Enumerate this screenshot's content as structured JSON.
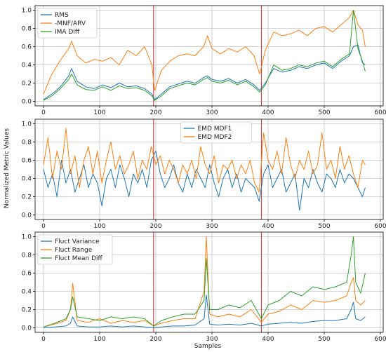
{
  "figure": {
    "ylabel": "Normalized Metric Values",
    "xlabel": "Samples"
  },
  "colors": {
    "blue": "#1f77b4",
    "orange": "#ff7f0e",
    "green": "#2ca02c",
    "vline": "#d62728",
    "grid": "#b0b0b0"
  },
  "chart_data": [
    {
      "type": "line",
      "xlim": [
        -15,
        605
      ],
      "ylim": [
        -0.05,
        1.05
      ],
      "xticks": [
        0,
        100,
        200,
        300,
        400,
        500,
        600
      ],
      "yticks": [
        0.0,
        0.2,
        0.4,
        0.6,
        0.8,
        1.0
      ],
      "vlines": [
        196,
        388
      ],
      "legend": "top-left",
      "series": [
        {
          "name": "RMS",
          "color": "blue",
          "x": [
            0,
            15,
            30,
            45,
            50,
            60,
            75,
            90,
            105,
            120,
            135,
            150,
            165,
            180,
            193,
            198,
            210,
            225,
            240,
            255,
            270,
            285,
            292,
            300,
            315,
            330,
            345,
            360,
            375,
            385,
            395,
            410,
            425,
            440,
            455,
            470,
            485,
            500,
            515,
            530,
            545,
            552,
            560,
            568,
            573
          ],
          "y": [
            0.02,
            0.08,
            0.16,
            0.28,
            0.36,
            0.22,
            0.16,
            0.14,
            0.18,
            0.15,
            0.2,
            0.16,
            0.17,
            0.14,
            0.08,
            0.02,
            0.08,
            0.16,
            0.19,
            0.22,
            0.2,
            0.26,
            0.28,
            0.24,
            0.22,
            0.25,
            0.2,
            0.24,
            0.18,
            0.12,
            0.2,
            0.36,
            0.32,
            0.34,
            0.38,
            0.36,
            0.4,
            0.42,
            0.36,
            0.44,
            0.5,
            0.6,
            0.62,
            0.42,
            0.4
          ]
        },
        {
          "name": "-MNF/ARV",
          "color": "orange",
          "x": [
            0,
            15,
            30,
            45,
            50,
            60,
            75,
            90,
            105,
            120,
            135,
            150,
            165,
            180,
            193,
            198,
            210,
            225,
            240,
            255,
            270,
            285,
            292,
            300,
            315,
            330,
            345,
            360,
            375,
            385,
            395,
            410,
            425,
            440,
            455,
            470,
            485,
            500,
            515,
            530,
            545,
            552,
            560,
            568,
            573
          ],
          "y": [
            0.08,
            0.3,
            0.45,
            0.58,
            0.66,
            0.5,
            0.42,
            0.46,
            0.44,
            0.48,
            0.4,
            0.56,
            0.5,
            0.6,
            0.4,
            0.12,
            0.34,
            0.44,
            0.5,
            0.52,
            0.5,
            0.6,
            0.72,
            0.58,
            0.52,
            0.58,
            0.54,
            0.6,
            0.5,
            0.3,
            0.56,
            0.76,
            0.72,
            0.74,
            0.78,
            0.72,
            0.8,
            0.82,
            0.76,
            0.84,
            0.92,
            1.0,
            0.84,
            0.78,
            0.6
          ]
        },
        {
          "name": "IMA Diff",
          "color": "green",
          "x": [
            0,
            15,
            30,
            45,
            50,
            60,
            75,
            90,
            105,
            120,
            135,
            150,
            165,
            180,
            193,
            198,
            210,
            225,
            240,
            255,
            270,
            285,
            292,
            300,
            315,
            330,
            345,
            360,
            375,
            385,
            395,
            410,
            425,
            440,
            455,
            470,
            485,
            500,
            515,
            530,
            545,
            552,
            560,
            568,
            573
          ],
          "y": [
            0.01,
            0.06,
            0.14,
            0.24,
            0.3,
            0.18,
            0.13,
            0.12,
            0.16,
            0.12,
            0.17,
            0.14,
            0.15,
            0.12,
            0.06,
            0.01,
            0.06,
            0.14,
            0.17,
            0.2,
            0.18,
            0.24,
            0.26,
            0.22,
            0.2,
            0.23,
            0.18,
            0.22,
            0.16,
            0.1,
            0.18,
            0.4,
            0.34,
            0.36,
            0.4,
            0.38,
            0.42,
            0.44,
            0.38,
            0.46,
            0.52,
            1.0,
            0.58,
            0.44,
            0.33
          ]
        }
      ]
    },
    {
      "type": "line",
      "xlim": [
        -15,
        605
      ],
      "ylim": [
        -0.05,
        1.05
      ],
      "xticks": [
        0,
        100,
        200,
        300,
        400,
        500,
        600
      ],
      "yticks": [
        0.0,
        0.2,
        0.4,
        0.6,
        0.8,
        1.0
      ],
      "vlines": [
        196,
        388
      ],
      "legend": "top-center",
      "series": [
        {
          "name": "EMD MDF1",
          "color": "blue",
          "x": [
            0,
            8,
            16,
            24,
            32,
            40,
            48,
            56,
            64,
            72,
            80,
            88,
            96,
            104,
            112,
            120,
            128,
            136,
            144,
            152,
            160,
            168,
            176,
            184,
            192,
            200,
            208,
            216,
            224,
            232,
            240,
            248,
            256,
            264,
            272,
            280,
            288,
            296,
            304,
            312,
            320,
            328,
            336,
            344,
            352,
            360,
            368,
            376,
            384,
            392,
            400,
            408,
            416,
            424,
            432,
            440,
            448,
            456,
            464,
            472,
            480,
            488,
            496,
            504,
            512,
            520,
            528,
            536,
            544,
            552,
            560,
            568,
            573
          ],
          "y": [
            0.5,
            0.3,
            0.45,
            0.2,
            0.6,
            0.35,
            0.5,
            0.25,
            0.4,
            0.55,
            0.3,
            0.45,
            0.35,
            0.1,
            0.4,
            0.5,
            0.3,
            0.55,
            0.4,
            0.2,
            0.45,
            0.35,
            0.5,
            0.3,
            0.6,
            0.7,
            0.45,
            0.3,
            0.4,
            0.55,
            0.35,
            0.25,
            0.45,
            0.3,
            0.5,
            0.4,
            0.3,
            0.55,
            0.35,
            0.2,
            0.4,
            0.5,
            0.3,
            0.45,
            0.25,
            0.4,
            0.35,
            0.3,
            0.15,
            0.45,
            0.55,
            0.3,
            0.4,
            0.5,
            0.25,
            0.35,
            0.45,
            0.05,
            0.4,
            0.3,
            0.5,
            0.35,
            0.25,
            0.45,
            0.4,
            0.3,
            0.5,
            0.35,
            0.45,
            0.4,
            0.3,
            0.2,
            0.3
          ]
        },
        {
          "name": "EMD MDF2",
          "color": "orange",
          "x": [
            0,
            8,
            16,
            24,
            32,
            40,
            48,
            56,
            64,
            72,
            80,
            88,
            96,
            104,
            112,
            120,
            128,
            136,
            144,
            152,
            160,
            168,
            176,
            184,
            192,
            200,
            208,
            216,
            224,
            232,
            240,
            248,
            256,
            264,
            272,
            280,
            288,
            296,
            304,
            312,
            320,
            328,
            336,
            344,
            352,
            360,
            368,
            376,
            384,
            392,
            400,
            408,
            416,
            424,
            432,
            440,
            448,
            456,
            464,
            472,
            480,
            488,
            496,
            504,
            512,
            520,
            528,
            536,
            544,
            552,
            560,
            568,
            573
          ],
          "y": [
            0.55,
            0.85,
            0.4,
            0.7,
            0.5,
            0.95,
            0.45,
            0.65,
            0.3,
            0.6,
            0.75,
            0.45,
            0.7,
            0.35,
            0.6,
            0.8,
            0.5,
            0.65,
            0.45,
            0.55,
            0.7,
            0.4,
            0.6,
            0.5,
            0.75,
            0.55,
            0.65,
            0.45,
            0.6,
            0.5,
            0.35,
            0.55,
            0.45,
            0.6,
            0.4,
            0.75,
            0.55,
            0.45,
            0.65,
            0.35,
            0.55,
            0.5,
            0.6,
            0.4,
            0.55,
            0.45,
            0.6,
            0.35,
            0.25,
            0.9,
            0.6,
            0.5,
            0.7,
            0.45,
            0.85,
            0.55,
            0.4,
            0.6,
            0.5,
            0.7,
            0.45,
            0.55,
            0.9,
            0.5,
            0.6,
            0.4,
            0.75,
            0.5,
            0.65,
            0.45,
            0.3,
            0.6,
            0.55
          ]
        }
      ]
    },
    {
      "type": "line",
      "xlim": [
        -15,
        605
      ],
      "ylim": [
        -0.05,
        1.05
      ],
      "xticks": [
        0,
        100,
        200,
        300,
        400,
        500,
        600
      ],
      "yticks": [
        0.0,
        0.2,
        0.4,
        0.6,
        0.8,
        1.0
      ],
      "vlines": [
        196,
        388
      ],
      "legend": "top-left",
      "series": [
        {
          "name": "Fluct Variance",
          "color": "blue",
          "x": [
            0,
            20,
            40,
            48,
            52,
            60,
            80,
            100,
            120,
            140,
            160,
            180,
            196,
            210,
            230,
            250,
            270,
            286,
            290,
            296,
            310,
            330,
            350,
            370,
            388,
            400,
            420,
            440,
            460,
            480,
            500,
            520,
            540,
            548,
            552,
            556,
            565,
            573
          ],
          "y": [
            0.0,
            0.01,
            0.02,
            0.05,
            0.12,
            0.02,
            0.01,
            0.01,
            0.02,
            0.01,
            0.02,
            0.01,
            0.0,
            0.01,
            0.02,
            0.02,
            0.03,
            0.1,
            0.36,
            0.04,
            0.03,
            0.04,
            0.03,
            0.05,
            0.02,
            0.04,
            0.05,
            0.06,
            0.05,
            0.07,
            0.08,
            0.08,
            0.1,
            0.2,
            0.28,
            0.1,
            0.08,
            0.12
          ]
        },
        {
          "name": "Fluct Range",
          "color": "orange",
          "x": [
            0,
            20,
            40,
            48,
            52,
            60,
            80,
            100,
            120,
            140,
            160,
            180,
            196,
            210,
            230,
            250,
            270,
            286,
            290,
            296,
            310,
            330,
            350,
            370,
            388,
            400,
            420,
            440,
            460,
            480,
            500,
            520,
            540,
            548,
            552,
            556,
            565,
            573
          ],
          "y": [
            0.01,
            0.04,
            0.08,
            0.2,
            0.49,
            0.08,
            0.06,
            0.1,
            0.05,
            0.08,
            0.06,
            0.08,
            0.02,
            0.05,
            0.08,
            0.1,
            0.1,
            0.4,
            1.0,
            0.15,
            0.12,
            0.15,
            0.12,
            0.2,
            0.06,
            0.15,
            0.18,
            0.25,
            0.2,
            0.3,
            0.28,
            0.3,
            0.35,
            0.5,
            0.55,
            0.3,
            0.25,
            0.3
          ]
        },
        {
          "name": "Fluct Mean Diff",
          "color": "green",
          "x": [
            0,
            20,
            40,
            48,
            52,
            60,
            80,
            100,
            120,
            140,
            160,
            180,
            196,
            210,
            230,
            250,
            270,
            286,
            290,
            296,
            310,
            330,
            350,
            370,
            388,
            400,
            420,
            440,
            460,
            480,
            500,
            520,
            540,
            548,
            552,
            556,
            565,
            573
          ],
          "y": [
            0.01,
            0.05,
            0.1,
            0.2,
            0.34,
            0.12,
            0.1,
            0.08,
            0.12,
            0.1,
            0.12,
            0.1,
            0.02,
            0.08,
            0.12,
            0.15,
            0.15,
            0.3,
            0.76,
            0.2,
            0.2,
            0.25,
            0.22,
            0.3,
            0.1,
            0.25,
            0.3,
            0.4,
            0.35,
            0.45,
            0.42,
            0.45,
            0.5,
            0.8,
            1.0,
            0.5,
            0.38,
            0.6
          ]
        }
      ]
    }
  ]
}
